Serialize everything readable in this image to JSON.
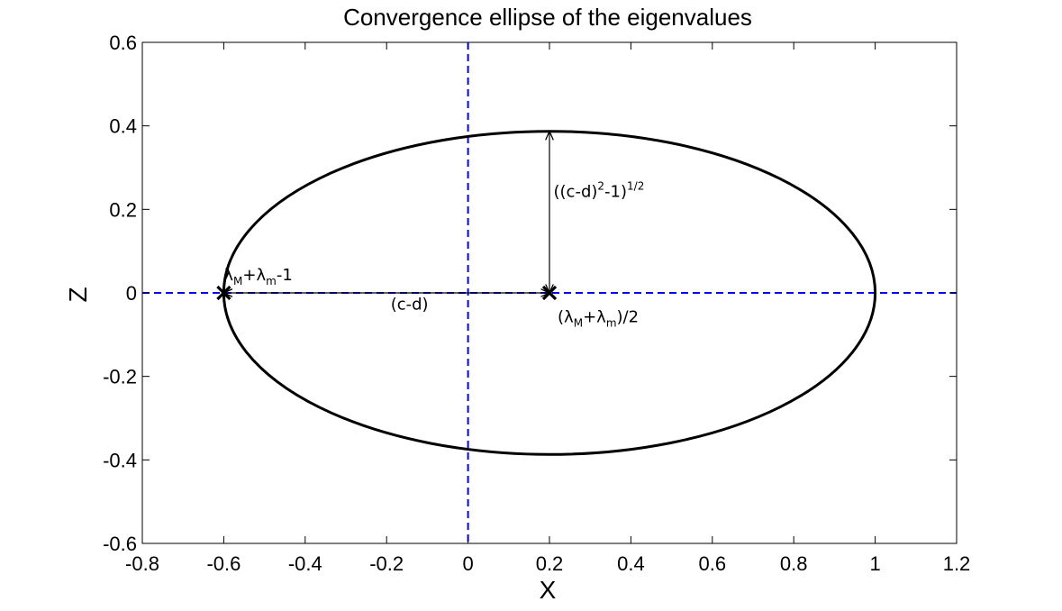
{
  "chart_data": {
    "type": "line",
    "title": "Convergence ellipse of the eigenvalues",
    "xlabel": "X",
    "ylabel": "Z",
    "xlim": [
      -0.8,
      1.2
    ],
    "ylim": [
      -0.6,
      0.6
    ],
    "grid": false,
    "x_ticks": [
      -0.8,
      -0.6,
      -0.4,
      -0.2,
      0,
      0.2,
      0.4,
      0.6,
      0.8,
      1,
      1.2
    ],
    "x_tick_labels": [
      "-0.8",
      "-0.6",
      "-0.4",
      "-0.2",
      "0",
      "0.2",
      "0.4",
      "0.6",
      "0.8",
      "1",
      "1.2"
    ],
    "y_ticks": [
      -0.6,
      -0.4,
      -0.2,
      0,
      0.2,
      0.4,
      0.6
    ],
    "y_tick_labels": [
      "-0.6",
      "-0.4",
      "-0.2",
      "0",
      "0.2",
      "0.4",
      "0.6"
    ],
    "ellipse": {
      "center_x": 0.2,
      "center_z": 0,
      "semi_axis_x": 0.8,
      "semi_axis_z": 0.387,
      "color": "#000000"
    },
    "reference_lines": [
      {
        "orientation": "vertical",
        "value": 0,
        "style": "dashed",
        "color": "#0000ff"
      },
      {
        "orientation": "horizontal",
        "value": 0,
        "style": "dashed",
        "color": "#0000ff"
      }
    ],
    "markers": [
      {
        "x": -0.6,
        "z": 0,
        "symbol": "x",
        "color": "#000000"
      },
      {
        "x": 0.2,
        "z": 0,
        "symbol": "x",
        "color": "#000000"
      }
    ],
    "arrows": [
      {
        "from": [
          0.2,
          0
        ],
        "to": [
          -0.6,
          0
        ],
        "double": true
      },
      {
        "from": [
          0.2,
          0
        ],
        "to": [
          0.2,
          0.387
        ],
        "double": true
      }
    ],
    "annotations": [
      {
        "id": "left-marker",
        "x": -0.6,
        "z": 0.03,
        "parts": [
          [
            "λ",
            "normal"
          ],
          [
            "M",
            "sub"
          ],
          [
            "+λ",
            "normal"
          ],
          [
            "m",
            "sub"
          ],
          [
            "-1",
            "normal"
          ]
        ]
      },
      {
        "id": "horizontal-distance",
        "x": -0.19,
        "z": -0.04,
        "parts": [
          [
            "(c-d)",
            "normal"
          ]
        ]
      },
      {
        "id": "center-marker",
        "x": 0.22,
        "z": -0.07,
        "parts": [
          [
            "(λ",
            "normal"
          ],
          [
            "M",
            "sub"
          ],
          [
            "+λ",
            "normal"
          ],
          [
            "m",
            "sub"
          ],
          [
            ")/2",
            "normal"
          ]
        ]
      },
      {
        "id": "vertical-distance",
        "x": 0.21,
        "z": 0.23,
        "parts": [
          [
            "((c-d)",
            "normal"
          ],
          [
            "2",
            "sup"
          ],
          [
            "-1)",
            "normal"
          ],
          [
            "1/2",
            "sup"
          ]
        ]
      }
    ]
  }
}
